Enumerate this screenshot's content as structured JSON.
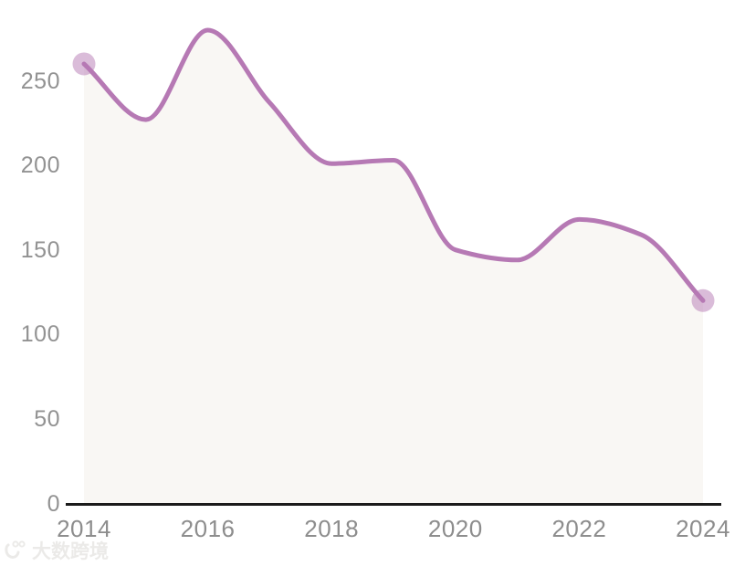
{
  "chart_data": {
    "type": "area",
    "title": "",
    "xlabel": "",
    "ylabel": "",
    "x": [
      2014,
      2015,
      2016,
      2017,
      2018,
      2019,
      2020,
      2021,
      2022,
      2023,
      2024
    ],
    "values": [
      260,
      227,
      280,
      237,
      201,
      203,
      150,
      144,
      168,
      159,
      120
    ],
    "x_ticks": [
      "2014",
      "2016",
      "2018",
      "2020",
      "2022",
      "2024"
    ],
    "x_tick_years": [
      2014,
      2016,
      2018,
      2020,
      2022,
      2024
    ],
    "y_ticks": [
      "0",
      "50",
      "100",
      "150",
      "200",
      "250"
    ],
    "y_tick_values": [
      0,
      50,
      100,
      150,
      200,
      250
    ],
    "ylim": [
      0,
      280
    ],
    "grid": false,
    "legend": false,
    "smooth": true,
    "marked_points": [
      {
        "year": 2014,
        "value": 260
      },
      {
        "year": 2024,
        "value": 120
      }
    ],
    "colors": {
      "line": "#b679b4",
      "marker": "rgba(182,121,180,0.5)",
      "area_fill": "#f9f7f4",
      "axis_line": "#1b1b1b",
      "tick_text": "#8f8f8f"
    }
  },
  "watermark": {
    "text": "大数跨境",
    "icon": "brand-logo"
  }
}
